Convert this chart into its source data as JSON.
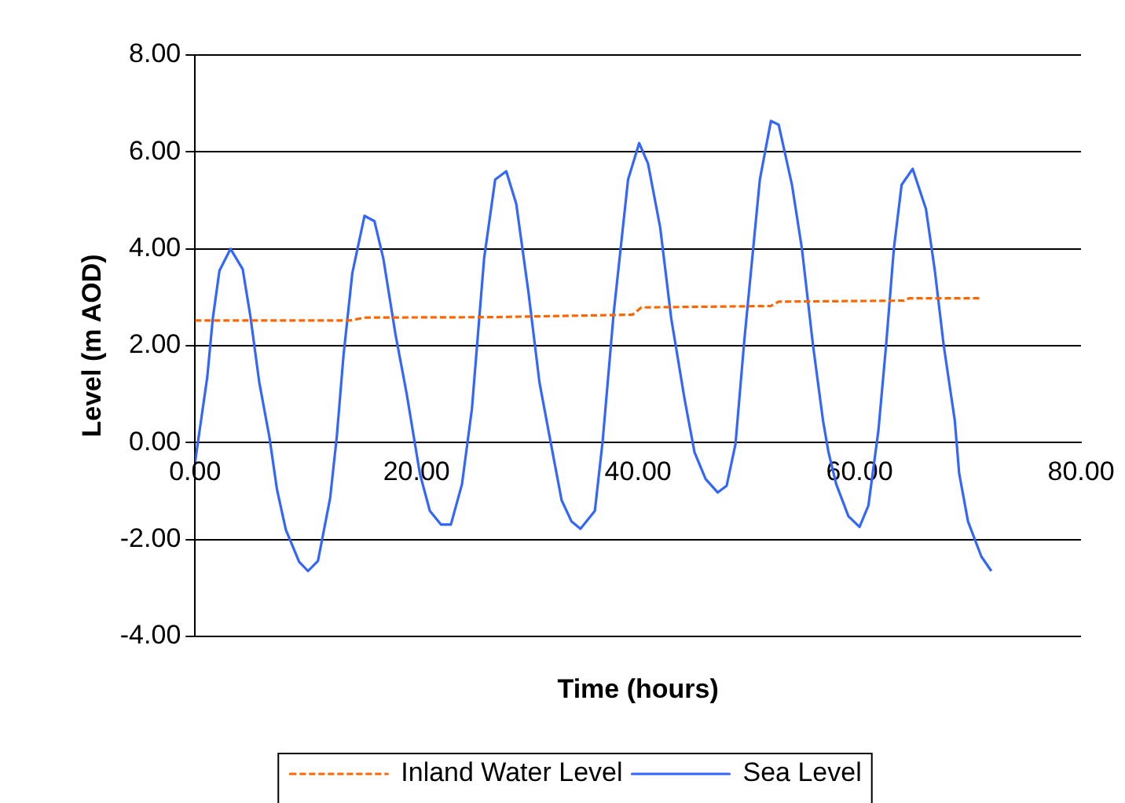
{
  "chart_data": {
    "type": "line",
    "xlabel": "Time (hours)",
    "ylabel": "Level (m AOD)",
    "xlim": [
      0,
      80
    ],
    "ylim": [
      -4,
      8
    ],
    "xticks": [
      {
        "value": 0,
        "label": "0.00"
      },
      {
        "value": 20,
        "label": "20.00"
      },
      {
        "value": 40,
        "label": "40.00"
      },
      {
        "value": 60,
        "label": "60.00"
      },
      {
        "value": 80,
        "label": "80.00"
      }
    ],
    "yticks": [
      {
        "value": -4,
        "label": "-4.00"
      },
      {
        "value": -2,
        "label": "-2.00"
      },
      {
        "value": 0,
        "label": "0.00"
      },
      {
        "value": 2,
        "label": "2.00"
      },
      {
        "value": 4,
        "label": "4.00"
      },
      {
        "value": 6,
        "label": "6.00"
      },
      {
        "value": 8,
        "label": "8.00"
      }
    ],
    "grid": "y",
    "legend": "bottom",
    "marker": "none",
    "series": [
      {
        "name": "Inland Water Level",
        "color": "#ff6600",
        "line_style": "dashed",
        "x": [
          0,
          14,
          15.3,
          27,
          39.5,
          40.3,
          52,
          52.7,
          64,
          64.5,
          71
        ],
        "values": [
          2.52,
          2.52,
          2.58,
          2.59,
          2.64,
          2.79,
          2.82,
          2.91,
          2.93,
          2.98,
          2.98
        ]
      },
      {
        "name": "Sea Level",
        "color": "#3366ff",
        "line_style": "solid",
        "x": [
          0,
          1.1,
          1.6,
          2.2,
          3.2,
          4.3,
          5.0,
          5.8,
          6.7,
          7.4,
          8.2,
          9.4,
          10.2,
          11.1,
          12.2,
          12.8,
          13.4,
          14.2,
          15.3,
          16.2,
          17.0,
          18.1,
          19.1,
          20.3,
          21.2,
          22.2,
          23.1,
          24.1,
          25.0,
          26.1,
          27.1,
          28.1,
          29.0,
          30.1,
          31.1,
          32.1,
          33.1,
          34.0,
          34.8,
          36.1,
          36.8,
          37.8,
          39.1,
          40.1,
          40.9,
          42.0,
          43.0,
          44.2,
          45.1,
          46.1,
          47.2,
          48.0,
          48.8,
          49.6,
          51.0,
          52.0,
          52.7,
          53.9,
          54.8,
          55.8,
          56.7,
          57.2,
          57.9,
          59.0,
          60.0,
          60.8,
          61.7,
          62.4,
          63.1,
          63.8,
          64.8,
          66.0,
          66.8,
          67.6,
          68.6,
          69.0,
          69.8,
          71.0,
          71.9
        ],
        "values": [
          -0.4,
          1.35,
          2.56,
          3.55,
          4.0,
          3.58,
          2.6,
          1.24,
          0.13,
          -0.97,
          -1.8,
          -2.46,
          -2.65,
          -2.44,
          -1.14,
          0.13,
          1.79,
          3.5,
          4.68,
          4.57,
          3.8,
          2.23,
          1.02,
          -0.64,
          -1.41,
          -1.69,
          -1.69,
          -0.86,
          0.7,
          3.8,
          5.43,
          5.6,
          4.93,
          3.11,
          1.24,
          0.02,
          -1.19,
          -1.63,
          -1.78,
          -1.41,
          0.02,
          2.67,
          5.43,
          6.18,
          5.76,
          4.44,
          2.56,
          0.9,
          -0.2,
          -0.75,
          -1.03,
          -0.89,
          -0.03,
          2.12,
          5.43,
          6.64,
          6.56,
          5.32,
          4.0,
          2.01,
          0.46,
          -0.2,
          -0.86,
          -1.52,
          -1.74,
          -1.3,
          0.24,
          2.01,
          4.0,
          5.32,
          5.65,
          4.82,
          3.55,
          2.01,
          0.46,
          -0.64,
          -1.63,
          -2.35,
          -2.65
        ]
      }
    ]
  }
}
